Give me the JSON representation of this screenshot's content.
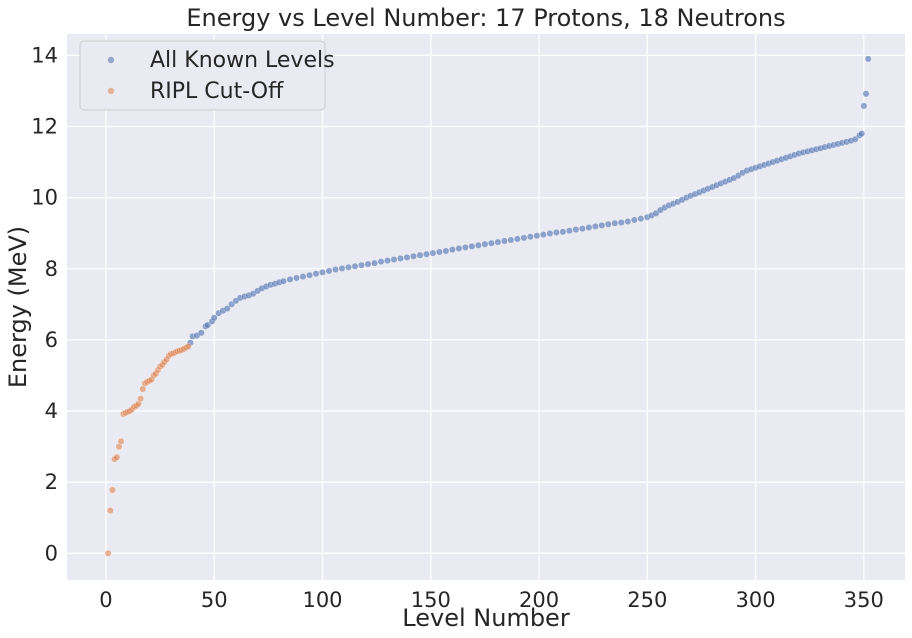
{
  "chart_data": {
    "type": "scatter",
    "title": "Energy vs Level Number: 17 Protons, 18 Neutrons",
    "xlabel": "Level Number",
    "ylabel": "Energy (MeV)",
    "xlim": [
      -18,
      369
    ],
    "ylim": [
      -0.75,
      14.6
    ],
    "xticks": [
      0,
      50,
      100,
      150,
      200,
      250,
      300,
      350
    ],
    "yticks": [
      0,
      2,
      4,
      6,
      8,
      10,
      12,
      14
    ],
    "grid": true,
    "legend_position": "top-left",
    "series": [
      {
        "name": "All Known Levels",
        "color": "#4c72b0",
        "points": [
          [
            39,
            5.92
          ],
          [
            40,
            6.1
          ],
          [
            42,
            6.12
          ],
          [
            44,
            6.2
          ],
          [
            46,
            6.38
          ],
          [
            47,
            6.42
          ],
          [
            49,
            6.52
          ],
          [
            50,
            6.62
          ],
          [
            52,
            6.75
          ],
          [
            54,
            6.82
          ],
          [
            56,
            6.88
          ],
          [
            58,
            7.0
          ],
          [
            60,
            7.1
          ],
          [
            62,
            7.18
          ],
          [
            64,
            7.22
          ],
          [
            66,
            7.25
          ],
          [
            68,
            7.3
          ],
          [
            70,
            7.38
          ],
          [
            72,
            7.45
          ],
          [
            74,
            7.5
          ],
          [
            76,
            7.55
          ],
          [
            78,
            7.58
          ],
          [
            80,
            7.62
          ],
          [
            82,
            7.65
          ],
          [
            85,
            7.7
          ],
          [
            88,
            7.74
          ],
          [
            91,
            7.78
          ],
          [
            94,
            7.82
          ],
          [
            97,
            7.86
          ],
          [
            100,
            7.9
          ],
          [
            103,
            7.94
          ],
          [
            106,
            7.98
          ],
          [
            109,
            8.01
          ],
          [
            112,
            8.04
          ],
          [
            115,
            8.07
          ],
          [
            118,
            8.1
          ],
          [
            121,
            8.13
          ],
          [
            124,
            8.16
          ],
          [
            127,
            8.2
          ],
          [
            130,
            8.23
          ],
          [
            133,
            8.26
          ],
          [
            136,
            8.29
          ],
          [
            139,
            8.32
          ],
          [
            142,
            8.35
          ],
          [
            145,
            8.38
          ],
          [
            148,
            8.41
          ],
          [
            151,
            8.44
          ],
          [
            154,
            8.47
          ],
          [
            157,
            8.5
          ],
          [
            160,
            8.54
          ],
          [
            163,
            8.57
          ],
          [
            166,
            8.6
          ],
          [
            169,
            8.63
          ],
          [
            172,
            8.66
          ],
          [
            175,
            8.69
          ],
          [
            178,
            8.72
          ],
          [
            181,
            8.75
          ],
          [
            184,
            8.78
          ],
          [
            187,
            8.81
          ],
          [
            190,
            8.84
          ],
          [
            193,
            8.87
          ],
          [
            196,
            8.9
          ],
          [
            199,
            8.93
          ],
          [
            202,
            8.96
          ],
          [
            205,
            8.99
          ],
          [
            208,
            9.02
          ],
          [
            211,
            9.04
          ],
          [
            214,
            9.07
          ],
          [
            217,
            9.1
          ],
          [
            220,
            9.13
          ],
          [
            223,
            9.16
          ],
          [
            226,
            9.19
          ],
          [
            229,
            9.22
          ],
          [
            232,
            9.25
          ],
          [
            235,
            9.28
          ],
          [
            238,
            9.3
          ],
          [
            241,
            9.33
          ],
          [
            244,
            9.37
          ],
          [
            247,
            9.41
          ],
          [
            250,
            9.45
          ],
          [
            252,
            9.5
          ],
          [
            254,
            9.56
          ],
          [
            256,
            9.65
          ],
          [
            258,
            9.72
          ],
          [
            260,
            9.78
          ],
          [
            262,
            9.83
          ],
          [
            264,
            9.88
          ],
          [
            266,
            9.94
          ],
          [
            268,
            10.0
          ],
          [
            270,
            10.05
          ],
          [
            272,
            10.1
          ],
          [
            274,
            10.15
          ],
          [
            276,
            10.2
          ],
          [
            278,
            10.25
          ],
          [
            280,
            10.3
          ],
          [
            282,
            10.35
          ],
          [
            284,
            10.4
          ],
          [
            286,
            10.45
          ],
          [
            288,
            10.5
          ],
          [
            290,
            10.55
          ],
          [
            292,
            10.62
          ],
          [
            294,
            10.7
          ],
          [
            296,
            10.76
          ],
          [
            298,
            10.8
          ],
          [
            300,
            10.84
          ],
          [
            302,
            10.88
          ],
          [
            304,
            10.92
          ],
          [
            306,
            10.96
          ],
          [
            308,
            11.0
          ],
          [
            310,
            11.04
          ],
          [
            312,
            11.08
          ],
          [
            314,
            11.12
          ],
          [
            316,
            11.16
          ],
          [
            318,
            11.2
          ],
          [
            320,
            11.24
          ],
          [
            322,
            11.27
          ],
          [
            324,
            11.3
          ],
          [
            326,
            11.33
          ],
          [
            328,
            11.36
          ],
          [
            330,
            11.39
          ],
          [
            332,
            11.42
          ],
          [
            334,
            11.45
          ],
          [
            336,
            11.48
          ],
          [
            338,
            11.51
          ],
          [
            340,
            11.54
          ],
          [
            342,
            11.57
          ],
          [
            344,
            11.6
          ],
          [
            346,
            11.64
          ],
          [
            348,
            11.75
          ],
          [
            349,
            11.8
          ],
          [
            350,
            12.58
          ],
          [
            351,
            12.92
          ],
          [
            352,
            13.9
          ]
        ]
      },
      {
        "name": "RIPL Cut-Off",
        "color": "#dd8452",
        "points": [
          [
            1,
            0.0
          ],
          [
            2,
            1.2
          ],
          [
            3,
            1.78
          ],
          [
            4,
            2.65
          ],
          [
            5,
            2.7
          ],
          [
            6,
            3.0
          ],
          [
            7,
            3.15
          ],
          [
            8,
            3.92
          ],
          [
            9,
            3.95
          ],
          [
            10,
            3.98
          ],
          [
            11,
            4.0
          ],
          [
            12,
            4.05
          ],
          [
            13,
            4.12
          ],
          [
            14,
            4.15
          ],
          [
            15,
            4.2
          ],
          [
            16,
            4.35
          ],
          [
            17,
            4.62
          ],
          [
            18,
            4.78
          ],
          [
            19,
            4.82
          ],
          [
            20,
            4.85
          ],
          [
            21,
            4.88
          ],
          [
            22,
            5.0
          ],
          [
            23,
            5.05
          ],
          [
            24,
            5.15
          ],
          [
            25,
            5.25
          ],
          [
            26,
            5.3
          ],
          [
            27,
            5.38
          ],
          [
            28,
            5.45
          ],
          [
            29,
            5.55
          ],
          [
            30,
            5.6
          ],
          [
            31,
            5.62
          ],
          [
            32,
            5.65
          ],
          [
            33,
            5.68
          ],
          [
            34,
            5.7
          ],
          [
            35,
            5.72
          ],
          [
            36,
            5.75
          ],
          [
            37,
            5.78
          ],
          [
            38,
            5.82
          ]
        ]
      }
    ]
  }
}
